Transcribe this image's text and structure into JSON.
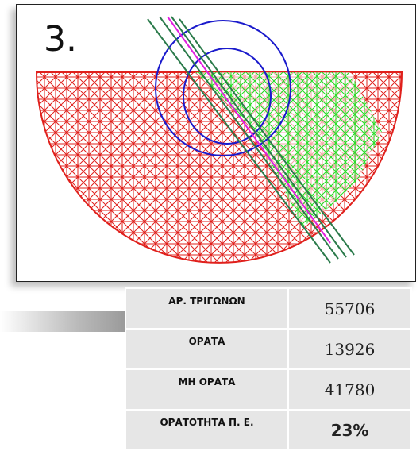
{
  "figure": {
    "label": "3."
  },
  "table": {
    "rows": [
      [
        "ΑΡ. ΤΡΙΓΩΝΩΝ",
        "55706"
      ],
      [
        "ΟΡΑΤΑ",
        "13926"
      ],
      [
        "ΜΗ ΟΡΑΤΑ",
        "41780"
      ],
      [
        "ΟΡΑΤΟΤΗΤΑ Π. Ε.",
        "23%"
      ]
    ]
  }
}
